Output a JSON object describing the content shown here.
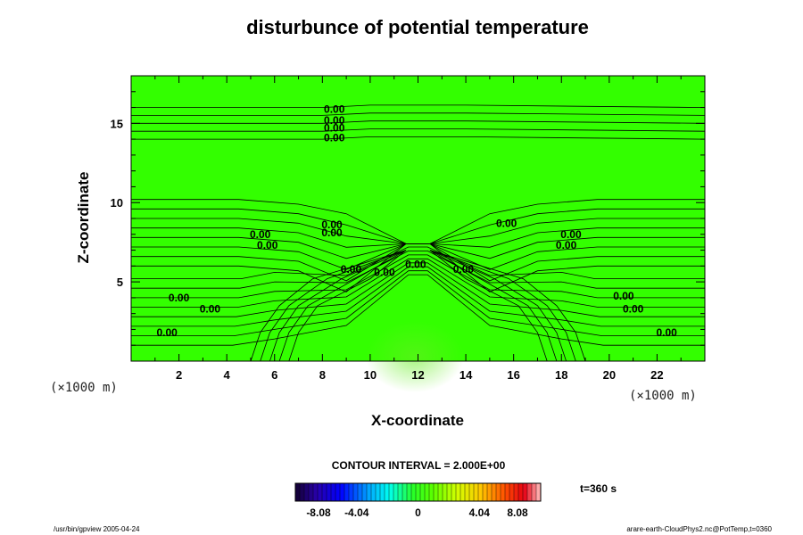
{
  "chart_data": {
    "type": "heatmap",
    "title": "disturbunce of potential temperature",
    "xlabel": "X-coordinate",
    "ylabel": "Z-coordinate",
    "x_unit": "(×1000 m)",
    "y_unit": "(×1000 m)",
    "xlim": [
      0,
      24
    ],
    "ylim": [
      0,
      18
    ],
    "x_ticks": [
      "2",
      "4",
      "6",
      "8",
      "10",
      "12",
      "14",
      "16",
      "18",
      "20",
      "22"
    ],
    "y_ticks": [
      "5",
      "10",
      "15"
    ],
    "contour_interval_text": "CONTOUR INTERVAL = 2.000E+00",
    "time_text": "t=360 s",
    "colorbar": {
      "min": -8.08,
      "max": 8.08,
      "tick_labels": [
        "-8.08",
        "-4.04",
        "0",
        "4.04",
        "8.08"
      ]
    },
    "contour_labels": [
      {
        "x": 8.5,
        "z": 15.9,
        "text": "0.00"
      },
      {
        "x": 8.5,
        "z": 15.2,
        "text": "0.00"
      },
      {
        "x": 8.5,
        "z": 14.7,
        "text": "0.00"
      },
      {
        "x": 8.5,
        "z": 14.1,
        "text": "0.00"
      },
      {
        "x": 8.4,
        "z": 8.6,
        "text": "0.00"
      },
      {
        "x": 8.4,
        "z": 8.1,
        "text": "0.00"
      },
      {
        "x": 5.4,
        "z": 8.0,
        "text": "0.00"
      },
      {
        "x": 5.7,
        "z": 7.3,
        "text": "0.00"
      },
      {
        "x": 15.7,
        "z": 8.7,
        "text": "0.00"
      },
      {
        "x": 18.4,
        "z": 8.0,
        "text": "0.00"
      },
      {
        "x": 18.2,
        "z": 7.3,
        "text": "0.00"
      },
      {
        "x": 9.2,
        "z": 5.8,
        "text": "0.00"
      },
      {
        "x": 10.6,
        "z": 5.6,
        "text": "0.00"
      },
      {
        "x": 11.9,
        "z": 6.1,
        "text": "0.00"
      },
      {
        "x": 13.9,
        "z": 5.8,
        "text": "0.00"
      },
      {
        "x": 2.0,
        "z": 4.0,
        "text": "0.00"
      },
      {
        "x": 3.3,
        "z": 3.3,
        "text": "0.00"
      },
      {
        "x": 20.6,
        "z": 4.1,
        "text": "0.00"
      },
      {
        "x": 21.0,
        "z": 3.3,
        "text": "0.00"
      },
      {
        "x": 1.5,
        "z": 1.8,
        "text": "0.00"
      },
      {
        "x": 22.4,
        "z": 1.8,
        "text": "0.00"
      }
    ],
    "field_value": 0.0,
    "grid": false
  },
  "footer": {
    "left": "/usr/bin/gpview 2005-04-24",
    "right": "arare-earth-CloudPhys2.nc@PotTemp,t=0360"
  },
  "colors": {
    "field": "#33ff00",
    "contour": "#000000"
  }
}
